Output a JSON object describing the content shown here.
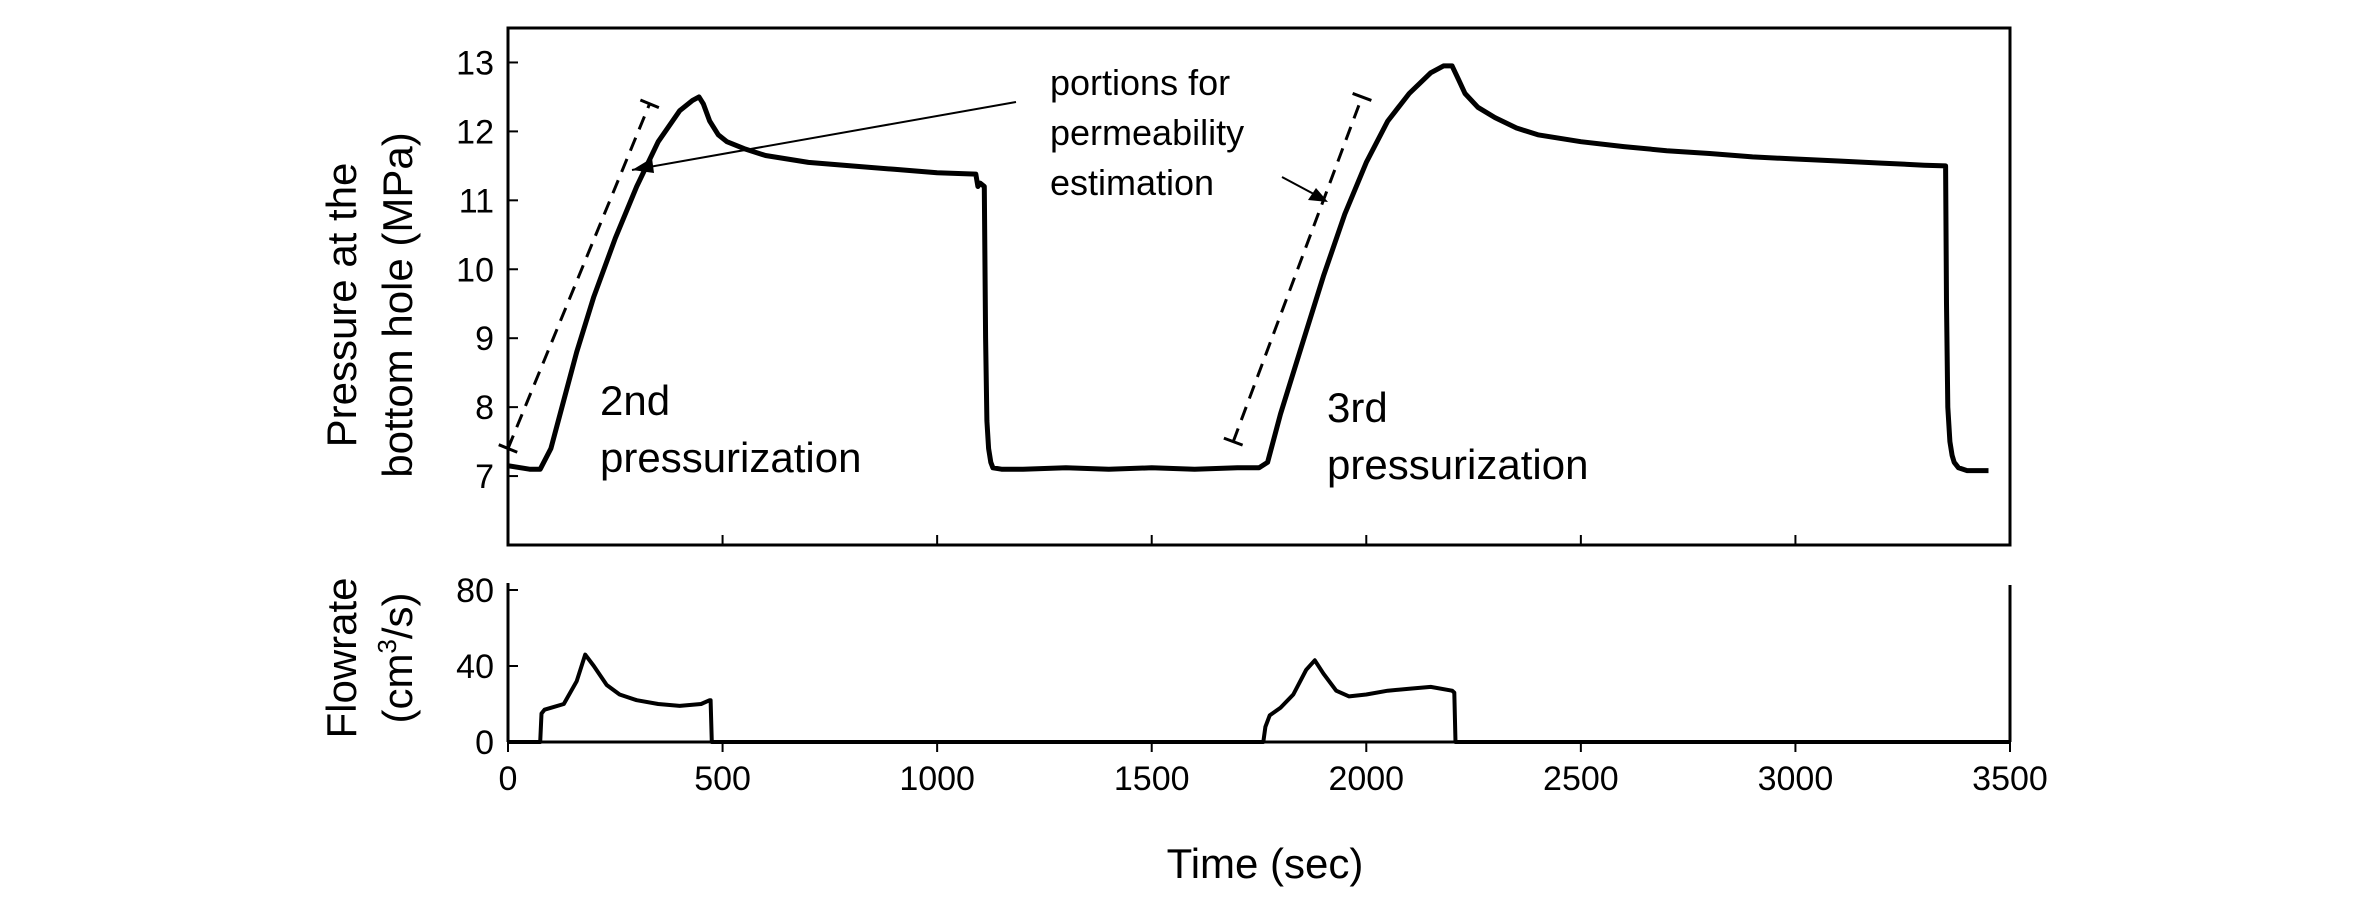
{
  "chart_data": [
    {
      "type": "line",
      "panel": "pressure",
      "title": "",
      "xlabel": "",
      "ylabel_line1": "Pressure at the",
      "ylabel_line2": "bottom hole (MPa)",
      "xlim": [
        0,
        3500
      ],
      "ylim": [
        6,
        13.5
      ],
      "yticks": [
        7,
        8,
        9,
        10,
        11,
        12,
        13
      ],
      "grid": false,
      "series": [
        {
          "name": "Pressure at the bottom hole",
          "x": [
            0,
            50,
            75,
            100,
            130,
            160,
            200,
            250,
            300,
            350,
            400,
            430,
            445,
            455,
            470,
            490,
            510,
            550,
            600,
            700,
            800,
            900,
            1000,
            1090,
            1095,
            1100,
            1110,
            1113,
            1116,
            1120,
            1125,
            1130,
            1150,
            1200,
            1300,
            1400,
            1500,
            1600,
            1700,
            1750,
            1770,
            1800,
            1850,
            1900,
            1950,
            2000,
            2050,
            2100,
            2150,
            2180,
            2200,
            2215,
            2230,
            2260,
            2300,
            2350,
            2400,
            2500,
            2600,
            2700,
            2800,
            2900,
            3000,
            3100,
            3200,
            3300,
            3350,
            3352,
            3355,
            3360,
            3365,
            3370,
            3380,
            3400,
            3450
          ],
          "y": [
            7.15,
            7.1,
            7.1,
            7.4,
            8.1,
            8.8,
            9.6,
            10.45,
            11.2,
            11.85,
            12.3,
            12.45,
            12.5,
            12.4,
            12.15,
            11.95,
            11.85,
            11.75,
            11.65,
            11.55,
            11.5,
            11.45,
            11.4,
            11.38,
            11.2,
            11.25,
            11.2,
            9.0,
            7.8,
            7.4,
            7.2,
            7.12,
            7.1,
            7.1,
            7.12,
            7.1,
            7.12,
            7.1,
            7.12,
            7.12,
            7.2,
            7.9,
            8.9,
            9.9,
            10.8,
            11.55,
            12.15,
            12.55,
            12.85,
            12.95,
            12.95,
            12.75,
            12.55,
            12.35,
            12.2,
            12.05,
            11.95,
            11.85,
            11.78,
            11.72,
            11.68,
            11.63,
            11.6,
            11.57,
            11.54,
            11.51,
            11.5,
            9.5,
            8.0,
            7.5,
            7.3,
            7.2,
            7.12,
            7.08,
            7.08
          ]
        }
      ],
      "dashed_guides": [
        {
          "x": [
            0,
            330
          ],
          "y": [
            7.4,
            12.4
          ]
        },
        {
          "x": [
            1690,
            1990
          ],
          "y": [
            7.5,
            12.5
          ]
        }
      ],
      "annotations": {
        "portions_line1": "portions for",
        "portions_line2": "permeability",
        "portions_line3": "estimation",
        "second_line1": "2nd",
        "second_line2": "pressurization",
        "third_line1": "3rd",
        "third_line2": "pressurization"
      }
    },
    {
      "type": "line",
      "panel": "flowrate",
      "title": "",
      "xlabel": "Time (sec)",
      "ylabel_line1": "Flowrate",
      "ylabel_line2_prefix": "(cm",
      "ylabel_line2_sup": "3",
      "ylabel_line2_suffix": "/s)",
      "xlim": [
        0,
        3500
      ],
      "xticks": [
        0,
        500,
        1000,
        1500,
        2000,
        2500,
        3000,
        3500
      ],
      "xtick_labels": [
        "0",
        "500",
        "1000",
        "1500",
        "2000",
        "2500",
        "3000",
        "3500"
      ],
      "ylim": [
        0,
        80
      ],
      "yticks": [
        0,
        40,
        80
      ],
      "grid": false,
      "series": [
        {
          "name": "Flowrate",
          "x": [
            0,
            75,
            78,
            85,
            100,
            130,
            160,
            180,
            200,
            230,
            260,
            300,
            350,
            400,
            450,
            470,
            472,
            475,
            700,
            1000,
            1500,
            1760,
            1765,
            1775,
            1800,
            1830,
            1860,
            1880,
            1900,
            1930,
            1960,
            2000,
            2050,
            2100,
            2150,
            2200,
            2205,
            2208,
            2500,
            3000,
            3500
          ],
          "y": [
            0,
            0,
            15,
            17,
            18,
            20,
            32,
            46,
            40,
            30,
            25,
            22,
            20,
            19,
            20,
            22,
            22,
            0,
            0,
            0,
            0,
            0,
            8,
            14,
            18,
            25,
            38,
            43,
            36,
            27,
            24,
            25,
            27,
            28,
            29,
            27,
            26,
            0,
            0,
            0,
            0
          ]
        }
      ]
    }
  ]
}
